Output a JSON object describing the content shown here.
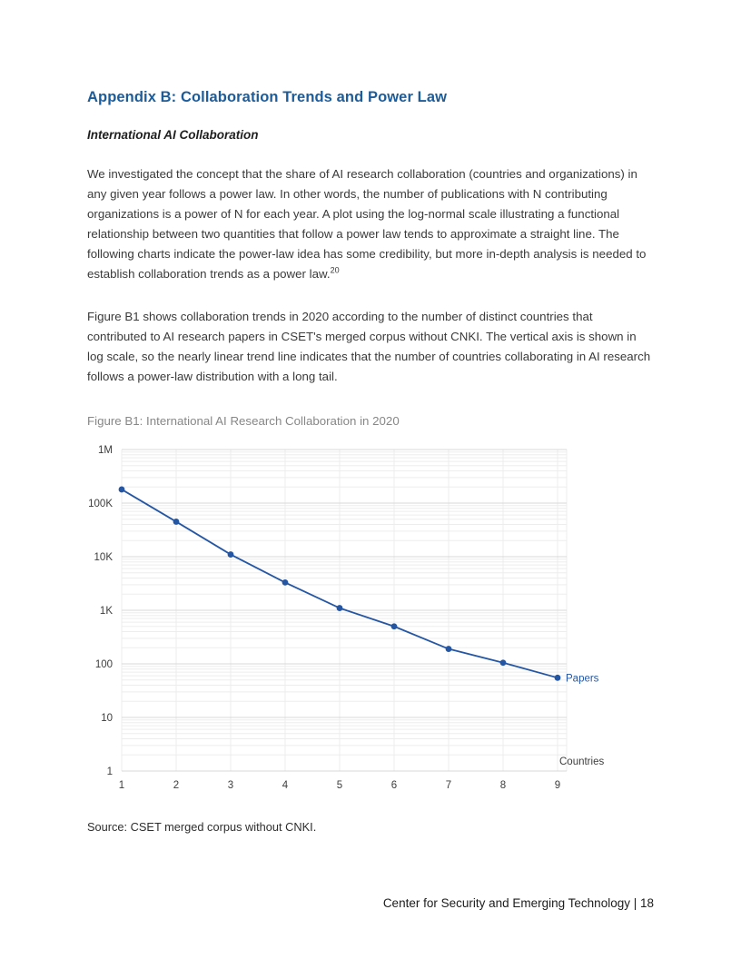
{
  "page": {
    "heading": "Appendix B: Collaboration Trends and Power Law",
    "subheading": "International AI Collaboration",
    "para1": "We investigated the concept that the share of AI research collaboration (countries and organizations) in any given year follows a power law. In other words, the number of publications with N contributing organizations is a power of N for each year. A plot using the log-normal scale illustrating a functional relationship between two quantities that follow a power law tends to approximate a straight line. The following charts indicate the power-law idea has some credibility, but more in-depth analysis is needed to establish collaboration trends as a power law.",
    "footnote_ref": "20",
    "para2": "Figure B1 shows collaboration trends in 2020 according to the number of distinct countries that contributed to AI research papers in CSET's merged corpus without CNKI. The vertical axis is shown in log scale, so the nearly linear trend line indicates that the number of countries collaborating in AI research follows a power-law distribution with a long tail.",
    "figure_caption": "Figure B1: International AI Research Collaboration in 2020",
    "source": "Source: CSET merged corpus without CNKI.",
    "footer": "Center for Security and Emerging Technology | 18"
  },
  "chart_data": {
    "type": "line",
    "title": "Figure B1: International AI Research Collaboration in 2020",
    "x": [
      1,
      2,
      3,
      4,
      5,
      6,
      7,
      8,
      9
    ],
    "series": [
      {
        "name": "Papers",
        "values": [
          180000,
          45000,
          11000,
          3300,
          1100,
          500,
          190,
          105,
          55
        ]
      }
    ],
    "xlabel": "Countries",
    "ylabel": "",
    "series_label": "Papers",
    "y_scale": "log",
    "ylim": [
      1,
      1000000
    ],
    "y_tick_labels": [
      "1M",
      "100K",
      "10K",
      "1K",
      "100",
      "10",
      "1"
    ],
    "x_tick_labels": [
      "1",
      "2",
      "3",
      "4",
      "5",
      "6",
      "7",
      "8",
      "9"
    ],
    "grid": true,
    "legend_position": "right-of-last-point",
    "line_color": "#2456a4",
    "marker_color": "#2456a4",
    "major_grid_color": "#d8d8d8",
    "minor_grid_color": "#ededed",
    "tick_text_color": "#3d3d3d"
  }
}
